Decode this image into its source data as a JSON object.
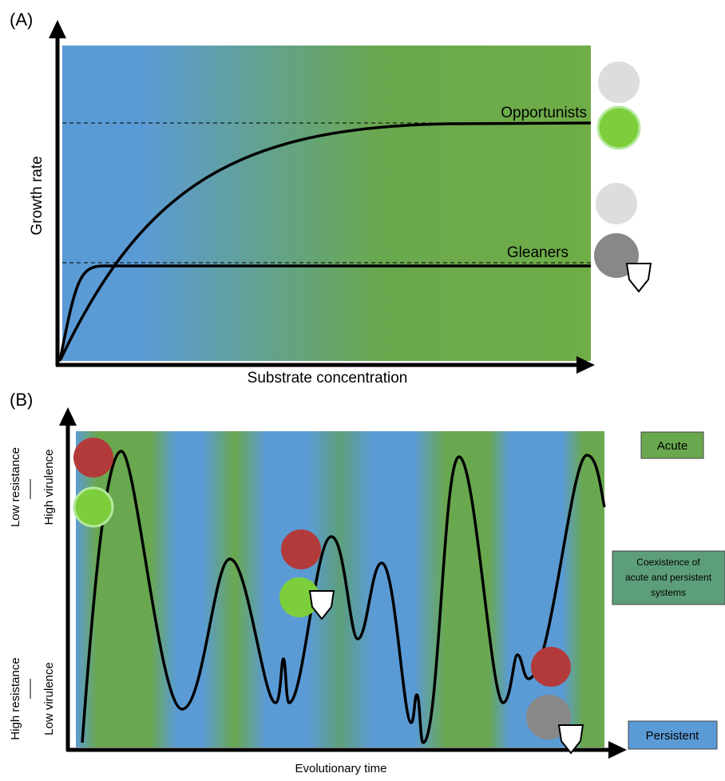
{
  "panel_a": {
    "label": "(A)",
    "y_axis_label": "Growth rate",
    "x_axis_label": "Substrate concentration",
    "curves": [
      "Opportunists",
      "Gleaners"
    ]
  },
  "panel_b": {
    "label": "(B)",
    "y_axis_top": [
      "Low resistance",
      "High virulence"
    ],
    "y_axis_bottom": [
      "High resistance",
      "Low virulence"
    ],
    "x_axis_label": "Evolutionary time",
    "legend": {
      "acute": "Acute",
      "coexistence": [
        "Coexistence of",
        "acute and persistent",
        "systems"
      ],
      "persistent": "Persistent"
    }
  }
}
